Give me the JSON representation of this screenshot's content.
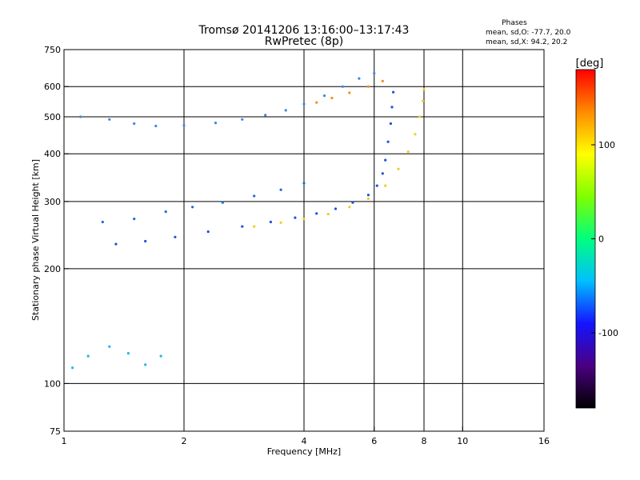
{
  "chart_data": {
    "type": "scatter",
    "title": "Tromsø 20141206 13:16:00–13:17:43",
    "subtitle": "RwPretec (8p)",
    "xlabel": "Frequency [MHz]",
    "ylabel": "Stationary phase Virtual Height [km]",
    "x_scale": "log",
    "y_scale": "log",
    "xlim": [
      1,
      16
    ],
    "ylim": [
      75,
      750
    ],
    "x_ticks": [
      {
        "value": 1,
        "label": "1"
      },
      {
        "value": 2,
        "label": "2"
      },
      {
        "value": 4,
        "label": "4"
      },
      {
        "value": 6,
        "label": "6"
      },
      {
        "value": 8,
        "label": "8"
      },
      {
        "value": 10,
        "label": "10"
      },
      {
        "value": 16,
        "label": "16"
      }
    ],
    "y_ticks": [
      {
        "value": 75,
        "label": "75"
      },
      {
        "value": 100,
        "label": "100"
      },
      {
        "value": 200,
        "label": "200"
      },
      {
        "value": 300,
        "label": "300"
      },
      {
        "value": 400,
        "label": "400"
      },
      {
        "value": 500,
        "label": "500"
      },
      {
        "value": 600,
        "label": "600"
      },
      {
        "value": 750,
        "label": "750"
      }
    ],
    "x_gridlines": [
      2,
      4,
      6,
      8,
      10
    ],
    "y_gridlines": [
      100,
      200,
      300,
      400,
      500,
      600
    ],
    "grid": true,
    "legend": {
      "heading": "Phases",
      "lines": [
        "mean, sd,O: -77.7, 20.0",
        "mean, sd,X:  94.2, 20.2"
      ],
      "placement": "top-right"
    },
    "colorbar": {
      "label": "[deg]",
      "range": [
        -180,
        180
      ],
      "ticks": [
        {
          "value": 100,
          "label": "100"
        },
        {
          "value": 0,
          "label": "0"
        },
        {
          "value": -100,
          "label": "-100"
        }
      ],
      "colors": [
        "#000000",
        "#4b0082",
        "#1414ff",
        "#00bfff",
        "#00ff7f",
        "#7fff00",
        "#ffff00",
        "#ff8c00",
        "#ff0000"
      ]
    },
    "series": [
      {
        "mode": "O",
        "phase": -100,
        "color": "#2050d8",
        "points": [
          [
            1.35,
            232
          ],
          [
            1.6,
            236
          ],
          [
            1.9,
            242
          ],
          [
            2.3,
            250
          ],
          [
            2.8,
            258
          ],
          [
            3.3,
            265
          ],
          [
            3.8,
            272
          ],
          [
            4.3,
            279
          ],
          [
            4.8,
            287
          ],
          [
            5.3,
            298
          ],
          [
            5.8,
            312
          ],
          [
            6.1,
            330
          ],
          [
            6.3,
            355
          ],
          [
            6.4,
            385
          ],
          [
            6.5,
            430
          ],
          [
            6.6,
            480
          ],
          [
            6.65,
            530
          ],
          [
            6.7,
            580
          ]
        ]
      },
      {
        "mode": "O",
        "phase": -90,
        "color": "#1a6ae0",
        "points": [
          [
            1.25,
            265
          ],
          [
            1.5,
            270
          ],
          [
            1.8,
            282
          ],
          [
            2.1,
            290
          ],
          [
            2.5,
            298
          ],
          [
            3.0,
            310
          ],
          [
            3.5,
            322
          ],
          [
            4.0,
            335
          ]
        ]
      },
      {
        "mode": "O",
        "phase": -80,
        "color": "#3a88e6",
        "points": [
          [
            1.1,
            500
          ],
          [
            1.3,
            492
          ],
          [
            1.5,
            480
          ],
          [
            1.7,
            473
          ],
          [
            2.0,
            475
          ],
          [
            2.4,
            482
          ],
          [
            2.8,
            492
          ],
          [
            3.2,
            505
          ],
          [
            3.6,
            520
          ],
          [
            4.0,
            540
          ],
          [
            4.5,
            568
          ],
          [
            5.0,
            600
          ],
          [
            5.5,
            630
          ],
          [
            6.0,
            650
          ]
        ]
      },
      {
        "mode": "O",
        "phase": -60,
        "color": "#22b4f0",
        "points": [
          [
            1.05,
            110
          ],
          [
            1.15,
            118
          ],
          [
            1.3,
            125
          ],
          [
            1.45,
            120
          ],
          [
            1.6,
            112
          ],
          [
            1.75,
            118
          ]
        ]
      },
      {
        "mode": "X",
        "phase": 90,
        "color": "#e8d020",
        "points": [
          [
            3.0,
            258
          ],
          [
            3.5,
            264
          ],
          [
            4.0,
            270
          ],
          [
            4.6,
            278
          ],
          [
            5.2,
            290
          ],
          [
            5.8,
            305
          ],
          [
            6.4,
            330
          ],
          [
            6.9,
            365
          ],
          [
            7.3,
            405
          ],
          [
            7.6,
            450
          ],
          [
            7.8,
            500
          ],
          [
            7.95,
            550
          ],
          [
            8.0,
            590
          ]
        ]
      },
      {
        "mode": "X",
        "phase": 110,
        "color": "#f09020",
        "points": [
          [
            4.3,
            545
          ],
          [
            4.7,
            560
          ],
          [
            5.2,
            578
          ],
          [
            5.8,
            600
          ],
          [
            6.3,
            620
          ]
        ]
      }
    ]
  }
}
